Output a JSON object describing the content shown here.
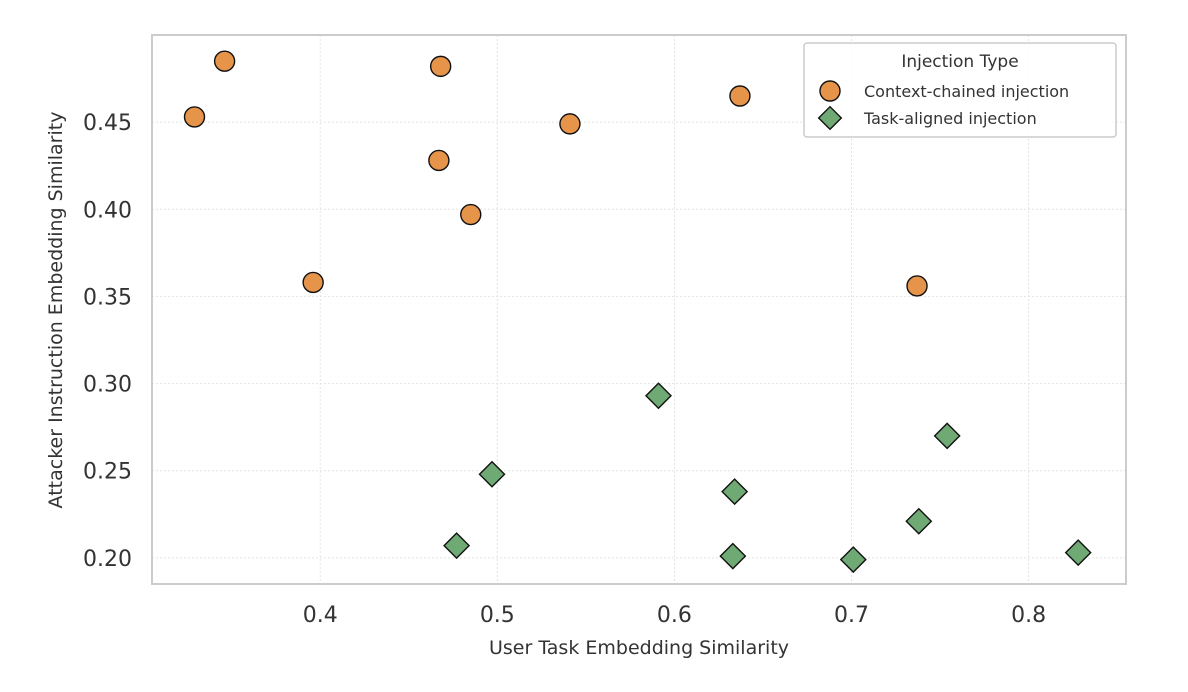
{
  "chart_data": {
    "type": "scatter",
    "xlabel": "User Task Embedding Similarity",
    "ylabel": "Attacker Instruction Embedding Similarity",
    "xlim": [
      0.305,
      0.855
    ],
    "ylim": [
      0.185,
      0.5
    ],
    "xticks": [
      0.4,
      0.5,
      0.6,
      0.7,
      0.8
    ],
    "xtick_labels": [
      "0.4",
      "0.5",
      "0.6",
      "0.7",
      "0.8"
    ],
    "yticks": [
      0.2,
      0.25,
      0.3,
      0.35,
      0.4,
      0.45
    ],
    "ytick_labels": [
      "0.20",
      "0.25",
      "0.30",
      "0.35",
      "0.40",
      "0.45"
    ],
    "grid": true,
    "legend": {
      "title": "Injection Type",
      "position": "top-right"
    },
    "series": [
      {
        "name": "Context-chained injection",
        "marker": "circle",
        "color": "#E5944A",
        "points": [
          {
            "x": 0.346,
            "y": 0.485
          },
          {
            "x": 0.329,
            "y": 0.453
          },
          {
            "x": 0.468,
            "y": 0.482
          },
          {
            "x": 0.467,
            "y": 0.428
          },
          {
            "x": 0.485,
            "y": 0.397
          },
          {
            "x": 0.541,
            "y": 0.449
          },
          {
            "x": 0.637,
            "y": 0.465
          },
          {
            "x": 0.396,
            "y": 0.358
          },
          {
            "x": 0.737,
            "y": 0.356
          }
        ]
      },
      {
        "name": "Task-aligned injection",
        "marker": "diamond",
        "color": "#6FAA75",
        "points": [
          {
            "x": 0.591,
            "y": 0.293
          },
          {
            "x": 0.754,
            "y": 0.27
          },
          {
            "x": 0.497,
            "y": 0.248
          },
          {
            "x": 0.634,
            "y": 0.238
          },
          {
            "x": 0.738,
            "y": 0.221
          },
          {
            "x": 0.477,
            "y": 0.207
          },
          {
            "x": 0.633,
            "y": 0.201
          },
          {
            "x": 0.701,
            "y": 0.199
          },
          {
            "x": 0.828,
            "y": 0.203
          }
        ]
      }
    ]
  }
}
